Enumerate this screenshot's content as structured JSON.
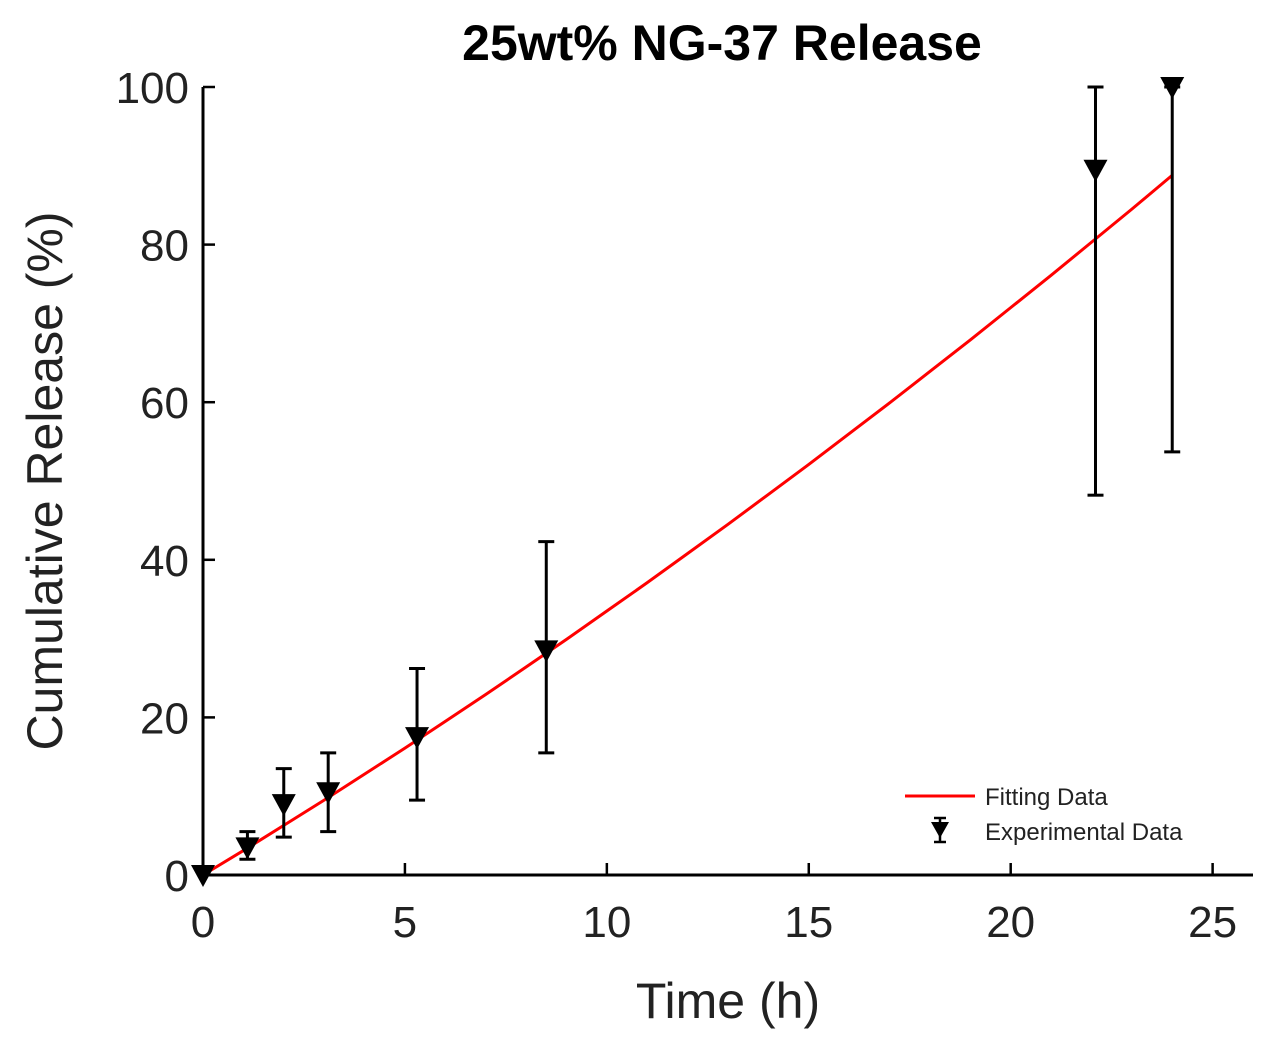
{
  "chart_data": {
    "type": "scatter",
    "title": "25wt%  NG-37 Release",
    "xlabel": "Time (h)",
    "ylabel": "Cumulative Release (%)",
    "xlim": [
      0,
      26
    ],
    "ylim": [
      0,
      100
    ],
    "xticks": [
      0,
      5,
      10,
      15,
      20,
      25
    ],
    "yticks": [
      0,
      20,
      40,
      60,
      80,
      100
    ],
    "legend_position": "bottom-right",
    "series": [
      {
        "name": "Fitting Data",
        "kind": "line",
        "color": "#ff0000",
        "x": [
          0,
          1,
          2,
          3,
          4,
          5,
          6,
          7,
          8,
          9,
          10,
          11,
          12,
          13,
          14,
          15,
          16,
          17,
          18,
          19,
          20,
          21,
          22,
          23,
          24
        ],
        "y": [
          0,
          3.1,
          6.3,
          9.5,
          12.8,
          16.1,
          19.5,
          22.9,
          26.4,
          29.9,
          33.5,
          37.1,
          40.8,
          44.5,
          48.3,
          52.1,
          56.0,
          59.9,
          63.9,
          67.9,
          72.0,
          76.1,
          80.3,
          84.5,
          88.8
        ]
      },
      {
        "name": "Experimental Data",
        "kind": "errorbar",
        "color": "#000000",
        "marker": "triangle-down",
        "x": [
          0,
          1.1,
          2.0,
          3.1,
          5.3,
          8.5,
          22.1,
          24.0
        ],
        "y": [
          0,
          3.5,
          9.0,
          10.5,
          17.5,
          28.5,
          89.5,
          100
        ],
        "err_low": [
          0,
          1.5,
          4.2,
          5.0,
          8.0,
          13.0,
          41.3,
          46.3
        ],
        "err_high": [
          0,
          2.0,
          4.5,
          5.0,
          8.7,
          13.8,
          10.5,
          0
        ]
      }
    ]
  }
}
